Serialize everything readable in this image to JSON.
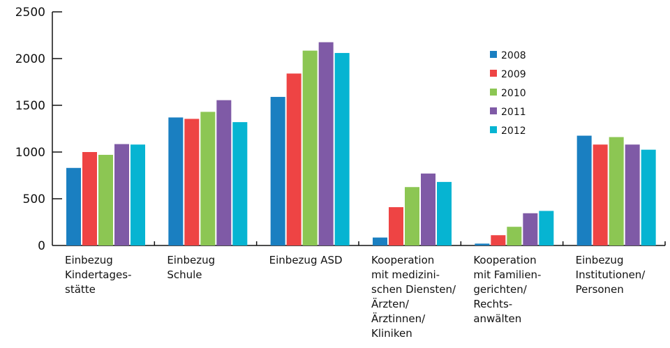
{
  "chart_data": {
    "type": "bar",
    "title": "",
    "xlabel": "",
    "ylabel": "",
    "ylim": [
      0,
      2500
    ],
    "yticks": [
      "0",
      "500",
      "1000",
      "1500",
      "2000",
      "2500"
    ],
    "grid": false,
    "legend_position": "top-right",
    "categories": [
      [
        "Einbezug",
        "Kindertages-",
        "stätte"
      ],
      [
        "Einbezug",
        "Schule"
      ],
      [
        "Einbezug ASD"
      ],
      [
        "Kooperation",
        "mit medizini-",
        "schen Diensten/",
        "Ärzten/",
        "Ärztinnen/",
        "Kliniken"
      ],
      [
        "Kooperation",
        "mit Familien-",
        "gerichten/",
        "Rechts-",
        "anwälten"
      ],
      [
        "Einbezug",
        "Institutionen/",
        "Personen"
      ]
    ],
    "series": [
      {
        "name": "2008",
        "color": "#1a7fc1",
        "values": [
          830,
          1370,
          1590,
          85,
          20,
          1175
        ]
      },
      {
        "name": "2009",
        "color": "#ee4444",
        "values": [
          1000,
          1355,
          1840,
          410,
          110,
          1080
        ]
      },
      {
        "name": "2010",
        "color": "#8cc653",
        "values": [
          970,
          1430,
          2085,
          625,
          200,
          1160
        ]
      },
      {
        "name": "2011",
        "color": "#7f5aa6",
        "values": [
          1085,
          1555,
          2175,
          770,
          345,
          1080
        ]
      },
      {
        "name": "2012",
        "color": "#06b4d2",
        "values": [
          1080,
          1320,
          2060,
          680,
          370,
          1025
        ]
      }
    ]
  }
}
